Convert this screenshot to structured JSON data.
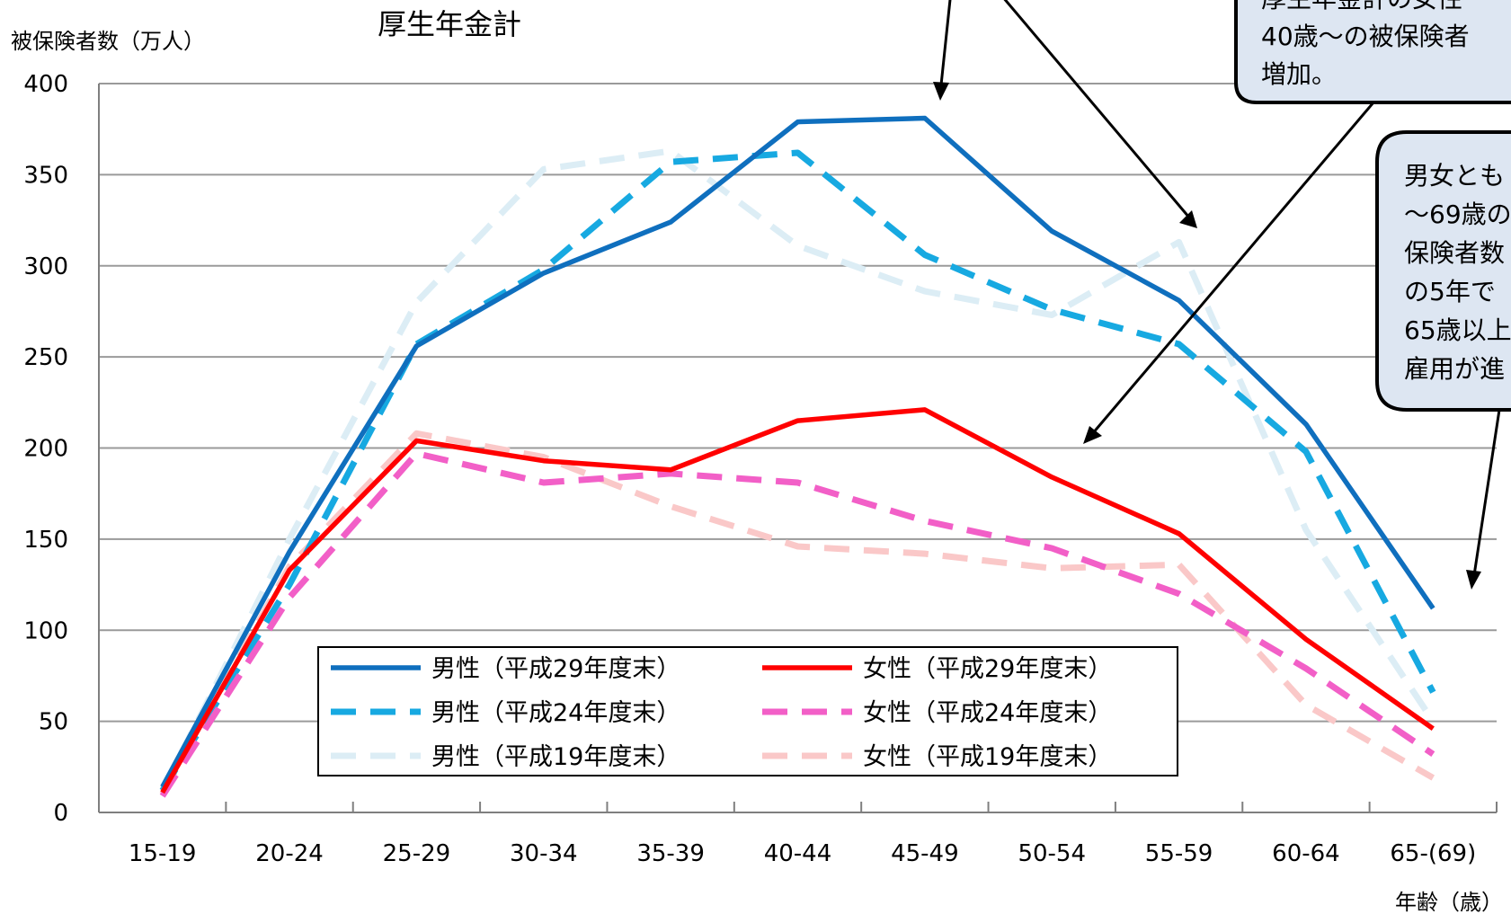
{
  "chart_data": {
    "type": "line",
    "title": "厚生年金計",
    "ylabel": "被保険者数（万人）",
    "xlabel": "年齢（歳）",
    "ylim": [
      0,
      400
    ],
    "yticks": [
      0,
      50,
      100,
      150,
      200,
      250,
      300,
      350,
      400
    ],
    "grid": true,
    "legend_position": "bottom-center",
    "categories": [
      "15-19",
      "20-24",
      "25-29",
      "30-34",
      "35-39",
      "40-44",
      "45-49",
      "50-54",
      "55-59",
      "60-64",
      "65-(69)"
    ],
    "series": [
      {
        "name": "男性（平成29年度末）",
        "color": "#0F6FBE",
        "style": "solid",
        "values": [
          14,
          143,
          256,
          296,
          324,
          379,
          381,
          319,
          281,
          213,
          112
        ]
      },
      {
        "name": "男性（平成24年度末）",
        "color": "#17A9E1",
        "style": "dashed",
        "values": [
          12,
          125,
          257,
          298,
          357,
          362,
          306,
          276,
          257,
          198,
          66
        ]
      },
      {
        "name": "男性（平成19年度末）",
        "color": "#DCEDF5",
        "style": "dashed",
        "values": [
          12,
          150,
          280,
          353,
          363,
          311,
          286,
          273,
          313,
          155,
          50
        ]
      },
      {
        "name": "女性（平成29年度末）",
        "color": "#FF0000",
        "style": "solid",
        "values": [
          11,
          133,
          204,
          193,
          188,
          215,
          221,
          184,
          153,
          95,
          46
        ]
      },
      {
        "name": "女性（平成24年度末）",
        "color": "#F25FC7",
        "style": "dashed",
        "values": [
          9,
          118,
          197,
          181,
          186,
          181,
          160,
          145,
          120,
          79,
          32
        ]
      },
      {
        "name": "女性（平成19年度末）",
        "color": "#FAC8C8",
        "style": "dashed",
        "values": [
          10,
          135,
          208,
          195,
          168,
          146,
          142,
          134,
          136,
          59,
          19
        ]
      }
    ],
    "annotations": [
      {
        "lines": [
          "厚生年金計の女性",
          "40歳～の被保険者",
          "増加。"
        ]
      },
      {
        "lines": [
          "男女とも",
          "～69歳の",
          "保険者数",
          "の5年で",
          "65歳以上",
          "雇用が進"
        ]
      }
    ]
  }
}
